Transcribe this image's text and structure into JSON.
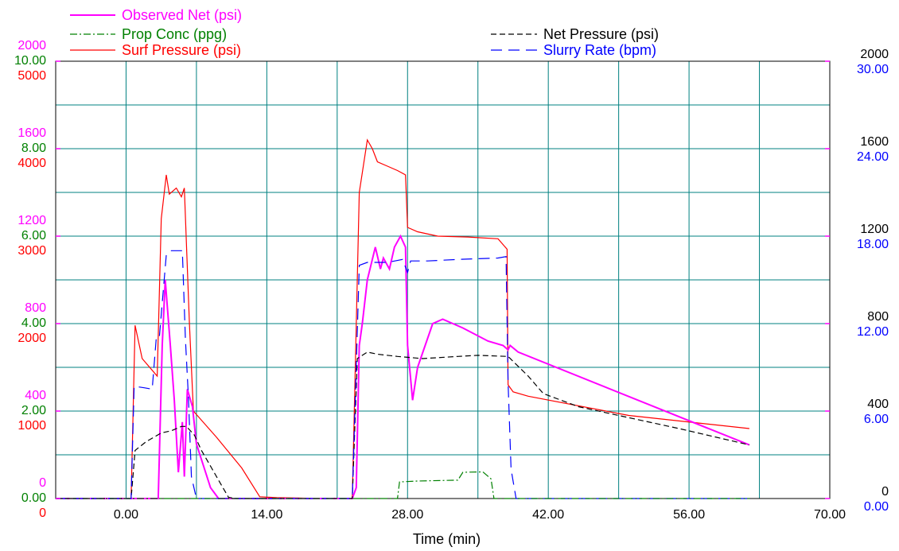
{
  "chart_data": {
    "type": "line",
    "xlabel": "Time (min)",
    "xlim": [
      -7,
      70
    ],
    "xticks": [
      "0.00",
      "14.00",
      "28.00",
      "42.00",
      "56.00",
      "70.00"
    ],
    "grid": true,
    "legend_position": "top",
    "colors": {
      "observed_net": "#ff00ff",
      "prop_conc": "#008000",
      "surf_pressure": "#ff0000",
      "net_pressure": "#000000",
      "slurry_rate": "#0000ff",
      "grid": "#008080"
    },
    "axes": {
      "left": [
        {
          "key": "observed_net",
          "range": [
            0,
            2000
          ],
          "ticks": [
            "0",
            "400",
            "800",
            "1200",
            "1600",
            "2000"
          ],
          "color": "#ff00ff"
        },
        {
          "key": "prop_conc",
          "range": [
            0,
            10
          ],
          "ticks": [
            "0.00",
            "2.00",
            "4.00",
            "6.00",
            "8.00",
            "10.00"
          ],
          "color": "#008000"
        },
        {
          "key": "surf_pressure",
          "range": [
            0,
            5000
          ],
          "ticks": [
            "0",
            "1000",
            "2000",
            "3000",
            "4000",
            "5000"
          ],
          "color": "#ff0000"
        }
      ],
      "right": [
        {
          "key": "net_pressure",
          "range": [
            0,
            2000
          ],
          "ticks": [
            "0",
            "400",
            "800",
            "1200",
            "1600",
            "2000"
          ],
          "color": "#000000"
        },
        {
          "key": "slurry_rate",
          "range": [
            0,
            30
          ],
          "ticks": [
            "0.00",
            "6.00",
            "12.00",
            "18.00",
            "24.00",
            "30.00"
          ],
          "color": "#0000ff"
        }
      ]
    },
    "series": [
      {
        "key": "surf_pressure",
        "name": "Surf Pressure (psi)",
        "axis": "surf_pressure",
        "style": "solid",
        "points": [
          [
            -7,
            0
          ],
          [
            0.5,
            0
          ],
          [
            0.9,
            1980
          ],
          [
            1.6,
            1600
          ],
          [
            3.1,
            1400
          ],
          [
            3.5,
            3200
          ],
          [
            4.0,
            3700
          ],
          [
            4.3,
            3480
          ],
          [
            5.0,
            3550
          ],
          [
            5.5,
            3450
          ],
          [
            5.8,
            3550
          ],
          [
            6.3,
            2000
          ],
          [
            6.7,
            1000
          ],
          [
            9.0,
            700
          ],
          [
            11.5,
            350
          ],
          [
            13.3,
            20
          ],
          [
            15.0,
            10
          ],
          [
            20.0,
            0
          ],
          [
            22.5,
            0
          ],
          [
            23.2,
            3500
          ],
          [
            24.0,
            4100
          ],
          [
            24.5,
            4000
          ],
          [
            25.0,
            3850
          ],
          [
            26.0,
            3800
          ],
          [
            27.0,
            3750
          ],
          [
            27.8,
            3700
          ],
          [
            28.0,
            3100
          ],
          [
            29.0,
            3050
          ],
          [
            31.0,
            3000
          ],
          [
            34.0,
            2990
          ],
          [
            37.0,
            2970
          ],
          [
            37.9,
            2850
          ],
          [
            38.0,
            1300
          ],
          [
            38.5,
            1220
          ],
          [
            40.0,
            1170
          ],
          [
            50.0,
            950
          ],
          [
            62.0,
            800
          ]
        ]
      },
      {
        "key": "observed_net",
        "name": "Observed Net (psi)",
        "axis": "observed_net",
        "style": "solid",
        "points": [
          [
            -7,
            0
          ],
          [
            0.5,
            0
          ],
          [
            3.2,
            0
          ],
          [
            3.6,
            700
          ],
          [
            3.9,
            1000
          ],
          [
            4.4,
            700
          ],
          [
            4.8,
            450
          ],
          [
            5.2,
            120
          ],
          [
            5.6,
            350
          ],
          [
            5.8,
            100
          ],
          [
            6.1,
            500
          ],
          [
            6.6,
            420
          ],
          [
            7.0,
            250
          ],
          [
            8.4,
            50
          ],
          [
            9.2,
            0
          ],
          [
            22.5,
            0
          ],
          [
            22.9,
            50
          ],
          [
            23.2,
            700
          ],
          [
            23.5,
            800
          ],
          [
            24.0,
            1000
          ],
          [
            24.8,
            1150
          ],
          [
            25.3,
            1050
          ],
          [
            25.6,
            1100
          ],
          [
            26.2,
            1050
          ],
          [
            26.7,
            1150
          ],
          [
            27.3,
            1200
          ],
          [
            27.8,
            1150
          ],
          [
            28.0,
            700
          ],
          [
            28.5,
            450
          ],
          [
            29.0,
            600
          ],
          [
            30.5,
            800
          ],
          [
            31.5,
            820
          ],
          [
            33.5,
            780
          ],
          [
            36.0,
            720
          ],
          [
            37.5,
            700
          ],
          [
            38.0,
            680
          ],
          [
            38.2,
            700
          ],
          [
            39.0,
            670
          ],
          [
            62.0,
            245
          ]
        ]
      },
      {
        "key": "net_pressure",
        "name": "Net Pressure (psi)",
        "axis": "net_pressure",
        "style": "dashed",
        "points": [
          [
            -7,
            0
          ],
          [
            0.5,
            0
          ],
          [
            0.9,
            220
          ],
          [
            2.0,
            260
          ],
          [
            3.5,
            300
          ],
          [
            4.5,
            310
          ],
          [
            5.5,
            330
          ],
          [
            6.0,
            330
          ],
          [
            6.8,
            290
          ],
          [
            7.5,
            220
          ],
          [
            8.5,
            140
          ],
          [
            9.5,
            60
          ],
          [
            10.2,
            5
          ],
          [
            11.0,
            0
          ],
          [
            22.5,
            0
          ],
          [
            23.0,
            640
          ],
          [
            24.0,
            670
          ],
          [
            25.0,
            660
          ],
          [
            27.0,
            650
          ],
          [
            29.5,
            640
          ],
          [
            33.0,
            650
          ],
          [
            35.0,
            655
          ],
          [
            38.0,
            650
          ],
          [
            40.0,
            560
          ],
          [
            41.5,
            480
          ],
          [
            45.0,
            420
          ],
          [
            50.0,
            370
          ],
          [
            55.0,
            320
          ],
          [
            62.0,
            245
          ]
        ]
      },
      {
        "key": "slurry_rate",
        "name": "Slurry Rate (bpm)",
        "axis": "slurry_rate",
        "style": "longdash",
        "points": [
          [
            -7,
            0
          ],
          [
            0.5,
            0
          ],
          [
            0.8,
            7.7
          ],
          [
            1.8,
            7.6
          ],
          [
            2.6,
            7.5
          ],
          [
            3.0,
            11.0
          ],
          [
            3.3,
            11.0
          ],
          [
            4.0,
            16.7
          ],
          [
            4.5,
            17.0
          ],
          [
            5.6,
            17.0
          ],
          [
            5.9,
            11.0
          ],
          [
            6.2,
            7.0
          ],
          [
            6.5,
            1.5
          ],
          [
            7.0,
            0
          ],
          [
            22.5,
            0
          ],
          [
            23.2,
            16.0
          ],
          [
            24.0,
            16.2
          ],
          [
            26.0,
            16.2
          ],
          [
            27.5,
            16.4
          ],
          [
            28.0,
            15.5
          ],
          [
            28.3,
            16.3
          ],
          [
            30.0,
            16.3
          ],
          [
            33.0,
            16.4
          ],
          [
            37.0,
            16.5
          ],
          [
            37.8,
            16.6
          ],
          [
            38.0,
            8.0
          ],
          [
            38.3,
            2.0
          ],
          [
            38.8,
            0
          ],
          [
            62.0,
            0
          ]
        ]
      },
      {
        "key": "prop_conc",
        "name": "Prop Conc (ppg)",
        "axis": "prop_conc",
        "style": "dashdot",
        "points": [
          [
            -7,
            0
          ],
          [
            27.0,
            0
          ],
          [
            27.2,
            0.38
          ],
          [
            29.0,
            0.4
          ],
          [
            33.0,
            0.42
          ],
          [
            33.5,
            0.6
          ],
          [
            35.5,
            0.61
          ],
          [
            36.3,
            0.45
          ],
          [
            36.6,
            0
          ],
          [
            62.0,
            0
          ]
        ]
      }
    ]
  }
}
